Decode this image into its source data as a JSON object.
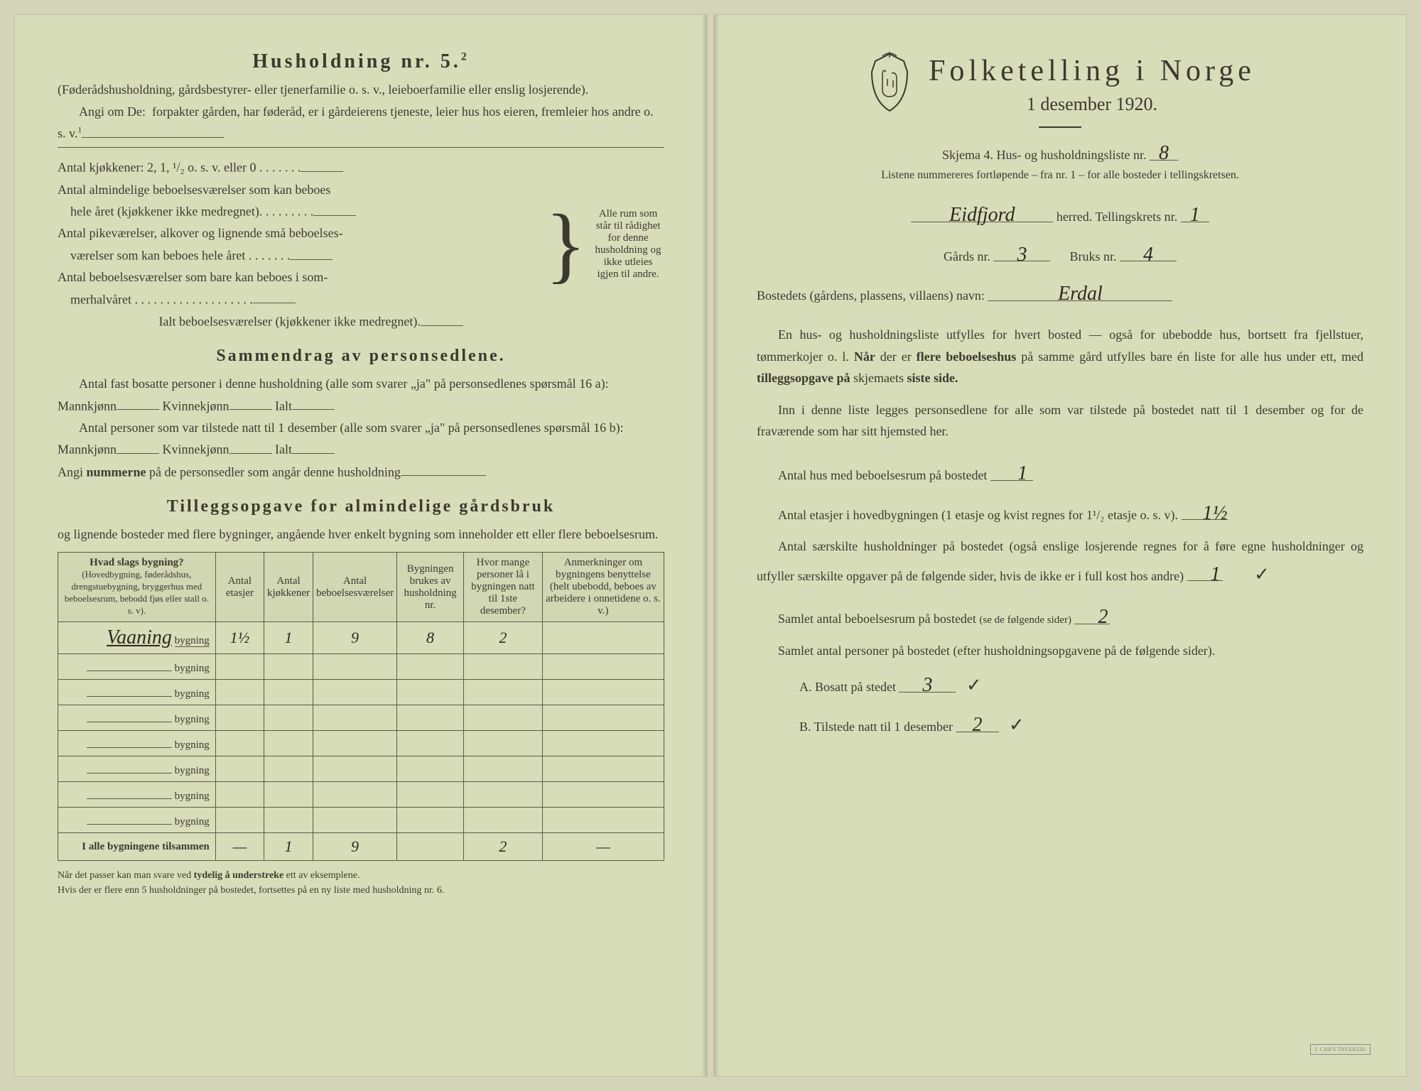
{
  "left": {
    "heading5": "Husholdning nr. 5.",
    "super": "2",
    "p1": "(Føderådshusholdning, gårdsbestyrer- eller tjenerfamilie o. s. v., leieboerfamilie eller enslig losjerende).",
    "p2a": "Angi om De:",
    "p2b": "forpakter gården, har føderåd, er i gårdeierens tjeneste, leier hus hos eieren, fremleier hos andre o. s. v.",
    "sup1": "1",
    "rooms": {
      "l1": "Antal kjøkkener: 2, 1, ¹/₂ o. s. v. eller 0 . . . . . . .",
      "l2a": "Antal almindelige beboelsesværelser som kan beboes",
      "l2b": "hele året (kjøkkener ikke medregnet). . . . . . . . .",
      "l3a": "Antal pikeværelser, alkover og lignende små beboelses-",
      "l3b": "værelser som kan beboes hele året . . . . . . .",
      "l4a": "Antal beboelsesværelser som bare kan beboes i som-",
      "l4b": "merhalvåret . . . . . . . . . . . . . . . . . . .",
      "l5": "Ialt beboelsesværelser (kjøkkener ikke medregnet).",
      "note": "Alle rum som står til rådighet for denne husholdning og ikke utleies igjen til andre."
    },
    "summary": {
      "heading": "Sammendrag av personsedlene.",
      "p1a": "Antal fast bosatte personer i denne husholdning (alle som svarer „ja\" på personsedlenes spørsmål 16 a): Mannkjønn",
      "p1b": "Kvinnekjønn",
      "p1c": "Ialt",
      "p2a": "Antal personer som var tilstede natt til 1 desember (alle som svarer „ja\" på personsedlenes spørsmål 16 b): Mannkjønn",
      "p2b": "Kvinnekjønn",
      "p2c": "Ialt",
      "p3": "Angi nummerne på de personsedler som angår denne husholdning"
    },
    "tillegg": {
      "heading": "Tilleggsopgave for almindelige gårdsbruk",
      "sub": "og lignende bosteder med flere bygninger, angående hver enkelt bygning som inneholder ett eller flere beboelsesrum.",
      "cols": [
        "Hvad slags bygning?\n(Hovedbygning, føderådshus, drengstuebygning, bryggerhus med beboelsesrum, bebodd fjøs eller stall o. s. v).",
        "Antal etasjer",
        "Antal kjøkkener",
        "Antal beboelsesværelser",
        "Bygningen brukes av husholdning nr.",
        "Hvor mange personer lå i bygningen natt til 1ste desember?",
        "Anmerkninger om bygningens benyttelse (helt ubebodd, beboes av arbeidere i onnetidene o. s. v.)"
      ],
      "row_label": "bygning",
      "row1_written": "Vaaning",
      "rows": [
        [
          "Vaaning",
          "1½",
          "1",
          "9",
          "8",
          "2",
          ""
        ],
        [
          "",
          "",
          "",
          "",
          "",
          "",
          ""
        ],
        [
          "",
          "",
          "",
          "",
          "",
          "",
          ""
        ],
        [
          "",
          "",
          "",
          "",
          "",
          "",
          ""
        ],
        [
          "",
          "",
          "",
          "",
          "",
          "",
          ""
        ],
        [
          "",
          "",
          "",
          "",
          "",
          "",
          ""
        ],
        [
          "",
          "",
          "",
          "",
          "",
          "",
          ""
        ],
        [
          "",
          "",
          "",
          "",
          "",
          "",
          ""
        ]
      ],
      "total_label": "I alle bygningene tilsammen",
      "totals": [
        "—",
        "1",
        "9",
        "",
        "2",
        "—"
      ],
      "footnote": "Når det passer kan man svare ved tydelig å understreke ett av eksemplene.\nHvis der er flere enn 5 husholdninger på bostedet, fortsettes på en ny liste med husholdning nr. 6."
    }
  },
  "right": {
    "title": "Folketelling i Norge",
    "date": "1 desember 1920.",
    "skjema": "Skjema 4.  Hus- og husholdningsliste nr.",
    "skjema_val": "8",
    "listnote": "Listene nummereres fortløpende – fra nr. 1 – for alle bosteder i tellingskretsen.",
    "herred_val": "Eidfjord",
    "herred_lbl": "herred.  Tellingskrets nr.",
    "krets_val": "1",
    "gards_lbl": "Gårds nr.",
    "gards_val": "3",
    "bruks_lbl": "Bruks nr.",
    "bruks_val": "4",
    "bosted_lbl": "Bostedets (gårdens, plassens, villaens) navn:",
    "bosted_val": "Erdal",
    "para1": "En hus- og husholdningsliste utfylles for hvert bosted — også for ubebodde hus, bortsett fra fjellstuer, tømmerkojer o. l. Når der er flere beboelseshus på samme gård utfylles bare én liste for alle hus under ett, med tilleggsopgave på skjemaets siste side.",
    "para2": "Inn i denne liste legges personsedlene for alle som var tilstede på bostedet natt til 1 desember og for de fraværende som har sitt hjemsted her.",
    "q1": "Antal hus med beboelsesrum på bostedet",
    "q1_val": "1",
    "q2": "Antal etasjer i hovedbygningen (1 etasje og kvist regnes for 1¹/₂ etasje o. s. v).",
    "q2_val": "1½",
    "q3": "Antal særskilte husholdninger på bostedet (også enslige losjerende regnes for å føre egne husholdninger og utfyller særskilte opgaver på de følgende sider, hvis de ikke er i full kost hos andre)",
    "q3_val": "1",
    "q4": "Samlet antal beboelsesrum på bostedet (se de følgende sider)",
    "q4_val": "2",
    "q5": "Samlet antal personer på bostedet (efter husholdningsopgavene på de følgende sider).",
    "q5a": "A.  Bosatt på stedet",
    "q5a_val": "3",
    "q5b": "B.  Tilstede natt til 1 desember",
    "q5b_val": "2"
  },
  "colors": {
    "paper": "#d8ddb9",
    "ink": "#3a3a2e",
    "handwriting": "#2a2a20"
  }
}
